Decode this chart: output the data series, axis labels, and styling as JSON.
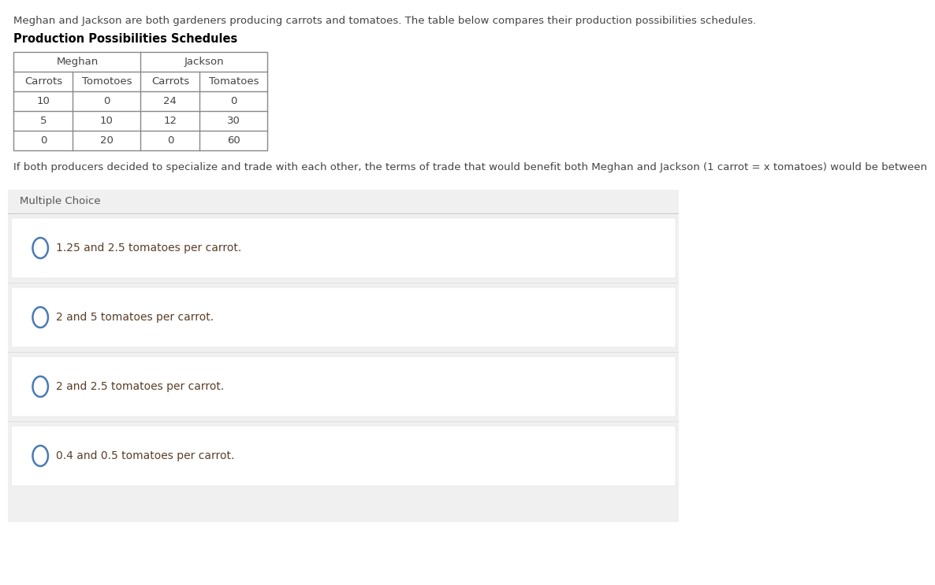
{
  "intro_text": "Meghan and Jackson are both gardeners producing carrots and tomatoes. The table below compares their production possibilities schedules.",
  "table_title": "Production Possibilities Schedules",
  "meghan_label": "Meghan",
  "jackson_label": "Jackson",
  "col_headers": [
    "Carrots",
    "Tomotoes",
    "Carrots",
    "Tomatoes"
  ],
  "table_data": [
    [
      "10",
      "0",
      "24",
      "0"
    ],
    [
      "5",
      "10",
      "12",
      "30"
    ],
    [
      "0",
      "20",
      "0",
      "60"
    ]
  ],
  "question_text": "If both producers decided to specialize and trade with each other, the terms of trade that would benefit both Meghan and Jackson (1 carrot = x tomatoes) would be between",
  "section_label": "Multiple Choice",
  "choices": [
    "1.25 and 2.5 tomatoes per carrot.",
    "2 and 5 tomatoes per carrot.",
    "2 and 2.5 tomatoes per carrot.",
    "0.4 and 0.5 tomatoes per carrot."
  ],
  "bg_color": "#ffffff",
  "outer_bg_color": "#f0f0f0",
  "table_border_color": "#888888",
  "intro_text_color": "#444444",
  "mc_header_bg": "#e8e8e8",
  "choice_bg_color": "#ffffff",
  "choice_outer_bg": "#f0f0f0",
  "choice_text_color": "#5a3e28",
  "circle_color": "#4a7ab5",
  "question_text_color": "#444444",
  "bold_title_color": "#000000",
  "table_text_color": "#444444"
}
